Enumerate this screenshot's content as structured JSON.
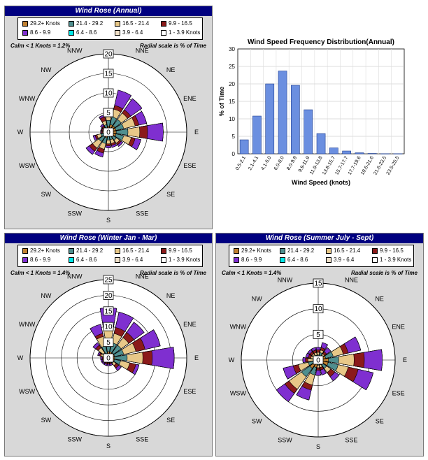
{
  "colors": {
    "panel_bg": "#d8d8d8",
    "title_bg": "#000080",
    "bar_fill": "#6b8fe0"
  },
  "chart_data": [
    {
      "type": "windrose",
      "panel_title": "Wind Rose  (Annual)",
      "calm_text": "Calm  <  1 Knots  = 1.2%",
      "radial_text": "Radial scale is % of Time",
      "rmax": 20,
      "ring_labels": [
        "0",
        "5",
        "10",
        "15",
        "20"
      ],
      "directions": [
        "N",
        "NNE",
        "NE",
        "ENE",
        "E",
        "ESE",
        "SE",
        "SSE",
        "S",
        "SSW",
        "SW",
        "WSW",
        "W",
        "WNW",
        "NW",
        "NNW"
      ],
      "legend": [
        {
          "label": "29.2+ Knots",
          "color": "#c08030"
        },
        {
          "label": "21.4 - 29.2",
          "color": "#4f8f8f"
        },
        {
          "label": "16.5 - 21.4",
          "color": "#e8c888"
        },
        {
          "label": "9.9 - 16.5",
          "color": "#8b1a1a"
        },
        {
          "label": "8.6 - 9.9",
          "color": "#7f2fd0"
        },
        {
          "label": "6.4 - 8.6",
          "color": "#00e6e6"
        },
        {
          "label": "3.9 - 6.4",
          "color": "#f0e0c8"
        },
        {
          "label": "1 - 3.9 Knots",
          "color": "#ffffff"
        }
      ],
      "cumulative_percent": [
        [
          1.5,
          3,
          4,
          5,
          5.5,
          5.5,
          5.5,
          5.5
        ],
        [
          2,
          4,
          6,
          7,
          11,
          11,
          11,
          11
        ],
        [
          2,
          4,
          6,
          7,
          10.5,
          10.5,
          10.5,
          10.5
        ],
        [
          2,
          4,
          7,
          8,
          10,
          10,
          10,
          10
        ],
        [
          2,
          5,
          8,
          10,
          14,
          14,
          14,
          14
        ],
        [
          2,
          4,
          6,
          7,
          8.5,
          8.5,
          8.5,
          8.5
        ],
        [
          1.5,
          2.5,
          3.5,
          4,
          4.5,
          4.5,
          4.5,
          4.5
        ],
        [
          1,
          2,
          3,
          3.5,
          4,
          4,
          4,
          4
        ],
        [
          1,
          2,
          3,
          3.5,
          4,
          4,
          4,
          4
        ],
        [
          1.5,
          3,
          4.5,
          5.5,
          6.5,
          6.5,
          6.5,
          6.5
        ],
        [
          1.5,
          3,
          5,
          6,
          7,
          7,
          7,
          7
        ],
        [
          1,
          2,
          3,
          3.5,
          4,
          4,
          4,
          4
        ],
        [
          0.5,
          1,
          1.5,
          1.8,
          2,
          2,
          2,
          2
        ],
        [
          0.5,
          1,
          1.5,
          1.8,
          2,
          2,
          2,
          2
        ],
        [
          0.5,
          1,
          1.5,
          2,
          2.5,
          2.5,
          2.5,
          2.5
        ],
        [
          1,
          2,
          3,
          4,
          4.5,
          4.5,
          4.5,
          4.5
        ]
      ]
    },
    {
      "type": "bar",
      "title": "Wind Speed Frequency Distribution(Annual)",
      "xlabel": "Wind Speed (knots)",
      "ylabel": "% of Time",
      "ylim": [
        0,
        30
      ],
      "yticks": [
        0,
        5,
        10,
        15,
        20,
        25,
        30
      ],
      "categories": [
        "0.5-2.1",
        "2.1-4.1",
        "4.1-6.0",
        "6.0-8.0",
        "8.0-9.9",
        "9.9-11.9",
        "11.9-13.8",
        "13.8-15.7",
        "15.7-17.7",
        "17.7-19.6",
        "19.6-21.6",
        "21.6-23.5",
        "23.5-25.5"
      ],
      "values": [
        4,
        10.8,
        20,
        23.7,
        19.6,
        12.6,
        5.8,
        1.7,
        0.8,
        0.3,
        0.1,
        0.05,
        0.05
      ]
    },
    {
      "type": "windrose",
      "panel_title": "Wind Rose (Winter Jan - Mar)",
      "calm_text": "Calm  <  1 Knots  = 1.4%",
      "radial_text": "Radial scale is % of Time",
      "rmax": 25,
      "ring_labels": [
        "0",
        "5",
        "10",
        "15",
        "20",
        "25"
      ],
      "directions": [
        "N",
        "NNE",
        "NE",
        "ENE",
        "E",
        "ESE",
        "SE",
        "SSE",
        "S",
        "SSW",
        "SW",
        "WSW",
        "W",
        "WNW",
        "NW",
        "NNW"
      ],
      "legend": [
        {
          "label": "29.2+ Knots",
          "color": "#c08030"
        },
        {
          "label": "21.4 - 29.2",
          "color": "#4f8f8f"
        },
        {
          "label": "16.5 - 21.4",
          "color": "#e8c888"
        },
        {
          "label": "9.9 - 16.5",
          "color": "#8b1a1a"
        },
        {
          "label": "8.6 - 9.9",
          "color": "#7f2fd0"
        },
        {
          "label": "6.4 - 8.6",
          "color": "#00e6e6"
        },
        {
          "label": "3.9 - 6.4",
          "color": "#f0e0c8"
        },
        {
          "label": "1 - 3.9 Knots",
          "color": "#ffffff"
        }
      ],
      "cumulative_percent": [
        [
          2,
          6,
          9,
          10,
          16,
          16,
          16,
          16
        ],
        [
          2,
          5,
          8,
          10,
          15,
          15,
          15,
          15
        ],
        [
          2,
          5,
          8,
          10,
          14,
          14,
          14,
          14
        ],
        [
          2,
          5,
          9,
          12,
          17,
          17,
          17,
          17
        ],
        [
          2,
          6,
          11,
          14,
          21,
          21,
          21,
          21
        ],
        [
          2,
          4,
          7,
          9,
          10,
          10,
          10,
          10
        ],
        [
          1,
          2,
          3,
          4,
          5,
          5,
          5,
          5
        ],
        [
          0.5,
          1,
          1.5,
          2,
          2.5,
          2.5,
          2.5,
          2.5
        ],
        [
          0.5,
          1,
          1.5,
          2,
          2.5,
          2.5,
          2.5,
          2.5
        ],
        [
          0.5,
          1,
          1.5,
          2,
          2.5,
          2.5,
          2.5,
          2.5
        ],
        [
          0.5,
          1,
          1.5,
          2,
          2.5,
          2.5,
          2.5,
          2.5
        ],
        [
          0.5,
          1,
          1.5,
          2,
          2.5,
          2.5,
          2.5,
          2.5
        ],
        [
          0.5,
          1,
          1.5,
          2,
          2.5,
          2.5,
          2.5,
          2.5
        ],
        [
          0.5,
          1.5,
          2.5,
          3,
          3.5,
          3.5,
          3.5,
          3.5
        ],
        [
          1,
          2,
          4,
          5,
          6,
          6,
          6,
          6
        ],
        [
          1.5,
          4,
          7,
          8,
          11,
          11,
          11,
          11
        ]
      ]
    },
    {
      "type": "windrose",
      "panel_title": "Wind Rose (Summer July - Sept)",
      "calm_text": "Calm  <  1 Knots  = 1.4%",
      "radial_text": "Radial scale is % of Time",
      "rmax": 15,
      "ring_labels": [
        "0",
        "5",
        "10",
        "15"
      ],
      "directions": [
        "N",
        "NNE",
        "NE",
        "ENE",
        "E",
        "ESE",
        "SE",
        "SSE",
        "S",
        "SSW",
        "SW",
        "WSW",
        "W",
        "WNW",
        "NW",
        "NNW"
      ],
      "legend": [
        {
          "label": "29.2+ Knots",
          "color": "#c08030"
        },
        {
          "label": "21.4 - 29.2",
          "color": "#4f8f8f"
        },
        {
          "label": "16.5 - 21.4",
          "color": "#e8c888"
        },
        {
          "label": "9.9 - 16.5",
          "color": "#8b1a1a"
        },
        {
          "label": "8.6 - 9.9",
          "color": "#7f2fd0"
        },
        {
          "label": "6.4 - 8.6",
          "color": "#00e6e6"
        },
        {
          "label": "3.9 - 6.4",
          "color": "#f0e0c8"
        },
        {
          "label": "1 - 3.9 Knots",
          "color": "#ffffff"
        }
      ],
      "cumulative_percent": [
        [
          0.5,
          1,
          1.5,
          2,
          2.5,
          2.5,
          2.5,
          2.5
        ],
        [
          0.5,
          1.5,
          2,
          2.5,
          3.5,
          3.5,
          3.5,
          3.5
        ],
        [
          0.5,
          1,
          1.5,
          2,
          3,
          3,
          3,
          3
        ],
        [
          1.5,
          3,
          5,
          6,
          8.5,
          8.5,
          8.5,
          8.5
        ],
        [
          2,
          4,
          7,
          9,
          12.5,
          12.5,
          12.5,
          12.5
        ],
        [
          2,
          4,
          6,
          8,
          11,
          11,
          11,
          11
        ],
        [
          1,
          2,
          3,
          4,
          5,
          5,
          5,
          5
        ],
        [
          0.5,
          1,
          1.5,
          2,
          3,
          3,
          3,
          3
        ],
        [
          0.5,
          1,
          1.5,
          2,
          3,
          3,
          3,
          3
        ],
        [
          1.5,
          3,
          5,
          6,
          8,
          8,
          8,
          8
        ],
        [
          2,
          4,
          7,
          8,
          10,
          10,
          10,
          10
        ],
        [
          1,
          2,
          4,
          5,
          7,
          7,
          7,
          7
        ],
        [
          0.5,
          1,
          2,
          2.5,
          3,
          3,
          3,
          3
        ],
        [
          0.5,
          1,
          1.5,
          2,
          2.5,
          2.5,
          2.5,
          2.5
        ],
        [
          0.5,
          1,
          1.5,
          2,
          2.5,
          2.5,
          2.5,
          2.5
        ],
        [
          0.5,
          1,
          1.5,
          2,
          2.5,
          2.5,
          2.5,
          2.5
        ]
      ]
    }
  ]
}
